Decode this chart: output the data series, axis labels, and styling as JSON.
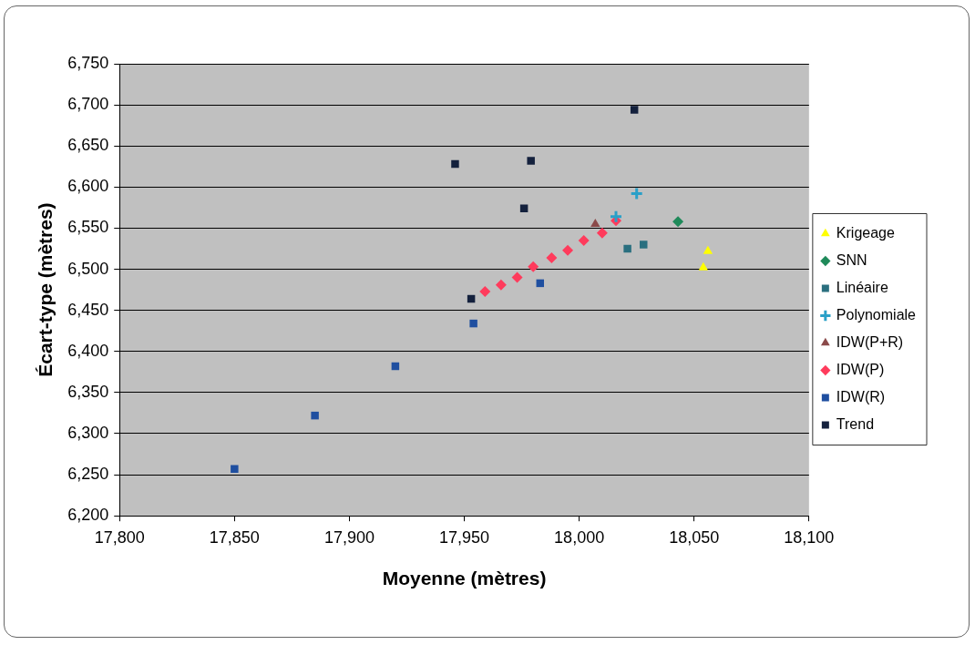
{
  "chart_data": {
    "type": "scatter",
    "xlabel": "Moyenne (mètres)",
    "ylabel": "Écart-type (mètres)",
    "xlim": [
      17800,
      18100
    ],
    "xticks": [
      {
        "value": 17800,
        "label": "17,800"
      },
      {
        "value": 17850,
        "label": "17,850"
      },
      {
        "value": 17900,
        "label": "17,900"
      },
      {
        "value": 17950,
        "label": "17,950"
      },
      {
        "value": 18000,
        "label": "18,000"
      },
      {
        "value": 18050,
        "label": "18,050"
      },
      {
        "value": 18100,
        "label": "18,100"
      }
    ],
    "ylim": [
      6200,
      6750
    ],
    "yticks": [
      {
        "value": 6200,
        "label": "6,200"
      },
      {
        "value": 6250,
        "label": "6,250"
      },
      {
        "value": 6300,
        "label": "6,300"
      },
      {
        "value": 6350,
        "label": "6,350"
      },
      {
        "value": 6400,
        "label": "6,400"
      },
      {
        "value": 6450,
        "label": "6,450"
      },
      {
        "value": 6500,
        "label": "6,500"
      },
      {
        "value": 6550,
        "label": "6,550"
      },
      {
        "value": 6600,
        "label": "6,600"
      },
      {
        "value": 6650,
        "label": "6,650"
      },
      {
        "value": 6700,
        "label": "6,700"
      },
      {
        "value": 6750,
        "label": "6,750"
      }
    ],
    "grid": "y",
    "legend": "right",
    "series": [
      {
        "name": "Krigeage",
        "color": "#ffff00",
        "marker": "triangle",
        "x": [
          18056,
          18054
        ],
        "values": [
          6522,
          6502
        ]
      },
      {
        "name": "SNN",
        "color": "#1f8a5a",
        "marker": "diamond",
        "x": [
          18043
        ],
        "values": [
          6558
        ]
      },
      {
        "name": "Linéaire",
        "color": "#2a6f7f",
        "marker": "square",
        "x": [
          18021,
          18028
        ],
        "values": [
          6525,
          6530
        ]
      },
      {
        "name": "Polynomiale",
        "color": "#2aa0c8",
        "marker": "cross",
        "x": [
          18025,
          18016
        ],
        "values": [
          6592,
          6564
        ]
      },
      {
        "name": "IDW(P+R)",
        "color": "#8b4a4a",
        "marker": "triangle",
        "x": [
          18007
        ],
        "values": [
          6555
        ]
      },
      {
        "name": "IDW(P)",
        "color": "#ff3b5c",
        "marker": "diamond",
        "x": [
          17959,
          17966,
          17973,
          17980,
          17988,
          17995,
          18002,
          18010,
          18016
        ],
        "values": [
          6473,
          6481,
          6490,
          6503,
          6514,
          6523,
          6535,
          6544,
          6559
        ]
      },
      {
        "name": "IDW(R)",
        "color": "#1f4fa0",
        "marker": "square",
        "x": [
          17850,
          17885,
          17920,
          17954,
          17983
        ],
        "values": [
          6257,
          6322,
          6382,
          6434,
          6483
        ]
      },
      {
        "name": "Trend",
        "color": "#14213d",
        "marker": "square",
        "x": [
          17953,
          17946,
          17976,
          17979,
          18024
        ],
        "values": [
          6464,
          6628,
          6574,
          6632,
          6694
        ]
      }
    ]
  }
}
